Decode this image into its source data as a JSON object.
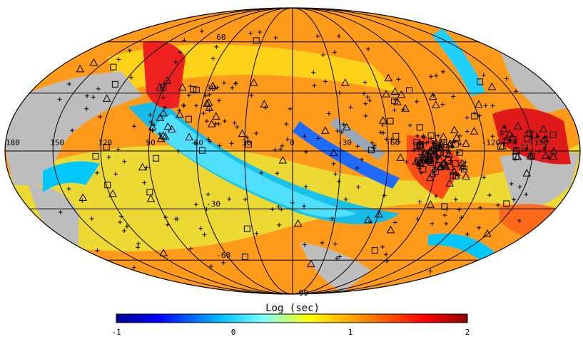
{
  "map": {
    "projection": "mollweide",
    "masked_color": "#bdbdbd",
    "graticule_color": "#000000",
    "longitude_labels": [
      "180",
      "150",
      "120",
      "90",
      "60",
      "30",
      "0",
      "-30",
      "-60",
      "-90",
      "-120",
      "-150"
    ],
    "latitude_labels": [
      "60",
      "30",
      "-30",
      "-60",
      "-90"
    ],
    "marker_legend": {
      "plus": "plus-marker",
      "triangle": "triangle-marker",
      "square": "square-marker"
    }
  },
  "colorbar": {
    "title": "Log (sec)",
    "min": -1,
    "max": 2,
    "tick_labels": [
      "-1",
      "0",
      "1",
      "2"
    ],
    "colormap": [
      "#00008f",
      "#0000ff",
      "#00bfff",
      "#7fffff",
      "#ffff00",
      "#ff7f00",
      "#ff0000",
      "#8f0000"
    ]
  }
}
